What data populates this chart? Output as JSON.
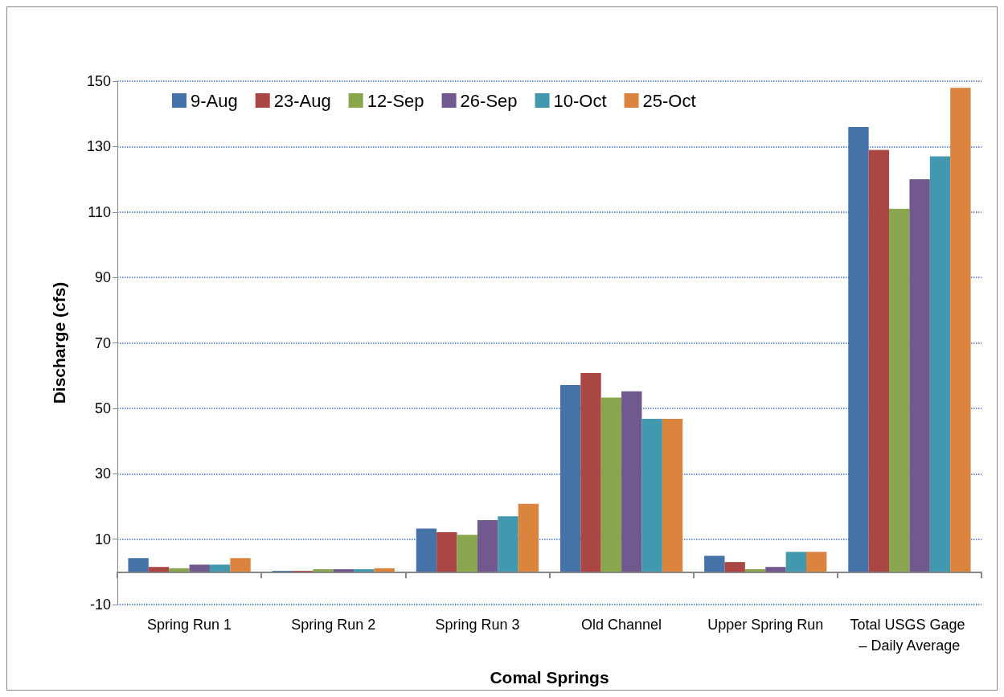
{
  "chart_data": {
    "type": "bar",
    "xlabel": "Comal Springs",
    "ylabel": "Discharge (cfs)",
    "categories": [
      "Spring Run 1",
      "Spring Run 2",
      "Spring Run 3",
      "Old Channel",
      "Upper Spring Run",
      "Total USGS Gage – Daily Average"
    ],
    "series": [
      {
        "name": "9-Aug",
        "color": "#4572a7",
        "values": [
          4.2,
          0.3,
          13.2,
          57.1,
          4.9,
          136
        ]
      },
      {
        "name": "23-Aug",
        "color": "#aa4643",
        "values": [
          1.5,
          0.3,
          12.1,
          60.8,
          3.0,
          129
        ]
      },
      {
        "name": "12-Sep",
        "color": "#89a54e",
        "values": [
          1.1,
          0.8,
          11.3,
          53.3,
          0.8,
          111
        ]
      },
      {
        "name": "26-Sep",
        "color": "#71588f",
        "values": [
          2.2,
          0.8,
          15.8,
          55.2,
          1.5,
          120
        ]
      },
      {
        "name": "10-Oct",
        "color": "#4198af",
        "values": [
          2.2,
          0.8,
          17,
          46.8,
          6.1,
          127
        ]
      },
      {
        "name": "25-Oct",
        "color": "#db843d",
        "values": [
          4.2,
          1.1,
          20.8,
          46.8,
          6.1,
          148
        ]
      }
    ],
    "ylim": [
      -10,
      150
    ],
    "yticks": [
      -10,
      10,
      30,
      50,
      70,
      90,
      110,
      130,
      150
    ],
    "grid": "y",
    "legend": "top left"
  }
}
